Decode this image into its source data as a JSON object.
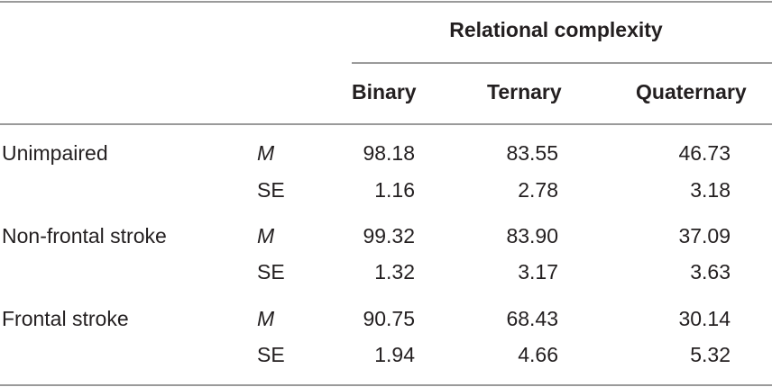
{
  "table": {
    "group_header": "Relational complexity",
    "columns": [
      "Binary",
      "Ternary",
      "Quaternary"
    ],
    "rows": [
      {
        "group": "Unimpaired",
        "stats": [
          {
            "label": "M",
            "values": [
              "98.18",
              "83.55",
              "46.73"
            ]
          },
          {
            "label": "SE",
            "values": [
              "1.16",
              "2.78",
              "3.18"
            ]
          }
        ]
      },
      {
        "group": "Non-frontal stroke",
        "stats": [
          {
            "label": "M",
            "values": [
              "99.32",
              "83.90",
              "37.09"
            ]
          },
          {
            "label": "SE",
            "values": [
              "1.32",
              "3.17",
              "3.63"
            ]
          }
        ]
      },
      {
        "group": "Frontal stroke",
        "stats": [
          {
            "label": "M",
            "values": [
              "90.75",
              "68.43",
              "30.14"
            ]
          },
          {
            "label": "SE",
            "values": [
              "1.94",
              "4.66",
              "5.32"
            ]
          }
        ]
      }
    ]
  }
}
